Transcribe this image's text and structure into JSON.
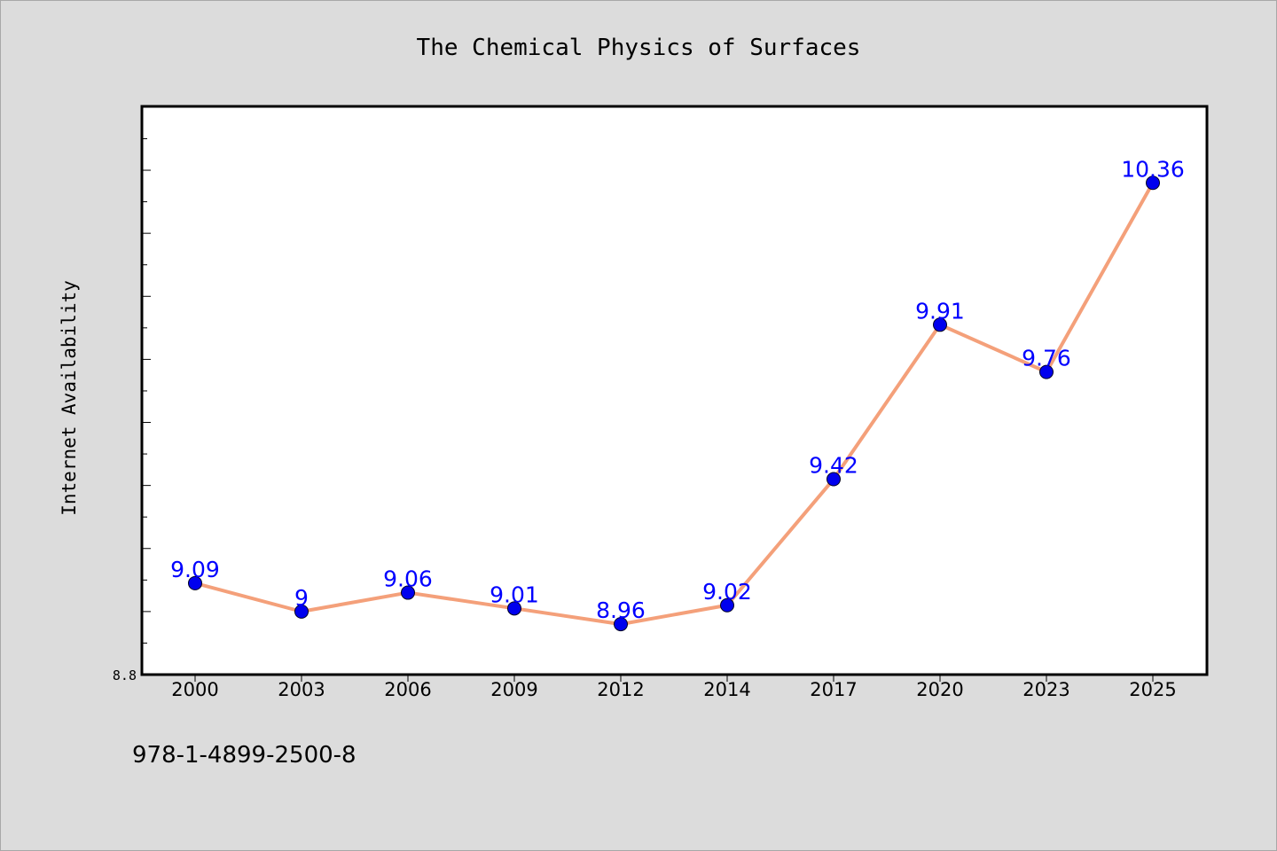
{
  "chart_data": {
    "type": "line",
    "title": "The Chemical Physics of Surfaces",
    "xlabel": "",
    "ylabel": "Internet Availability",
    "categories": [
      "2000",
      "2003",
      "2006",
      "2009",
      "2012",
      "2014",
      "2017",
      "2020",
      "2023",
      "2025"
    ],
    "series": [
      {
        "values": [
          9.09,
          9.0,
          9.06,
          9.01,
          8.96,
          9.02,
          9.42,
          9.91,
          9.76,
          10.36
        ],
        "data_labels": [
          "9.09",
          "9",
          "9.06",
          "9.01",
          "8.96",
          "9.02",
          "9.42",
          "9.91",
          "9.76",
          "10.36"
        ],
        "line_color": "#f4a07a",
        "marker_color": "#0000ee",
        "label_color": "#0000ff"
      }
    ],
    "ylim": [
      8.8,
      10.6
    ],
    "yticks_labeled": [
      "8.8"
    ],
    "grid": false,
    "legend": "none"
  },
  "footer": {
    "text": "978-1-4899-2500-8"
  },
  "colors": {
    "background": "#dcdcdc",
    "plot_background": "#ffffff"
  }
}
